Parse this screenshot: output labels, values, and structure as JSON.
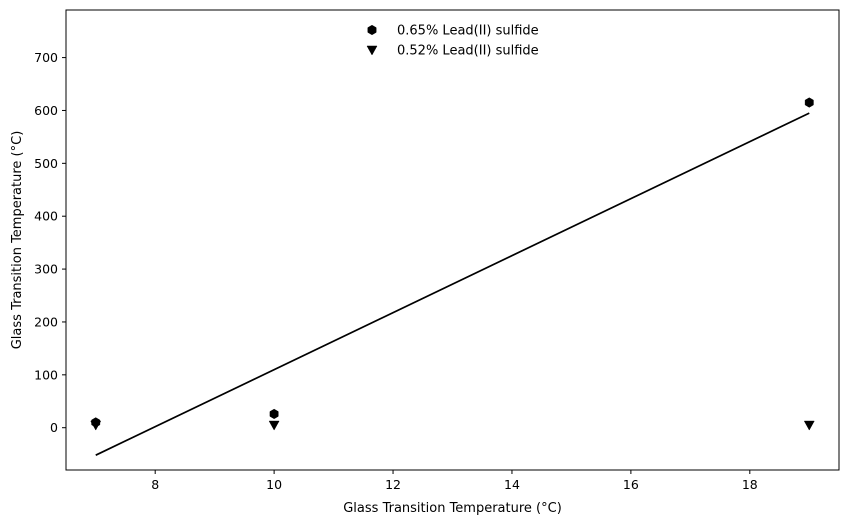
{
  "chart_data": {
    "type": "scatter",
    "xlabel": "Glass Transition Temperature (°C)",
    "ylabel": "Glass Transition Temperature (°C)",
    "xlim": [
      6.5,
      19.5
    ],
    "ylim": [
      -80,
      790
    ],
    "xticks": [
      8,
      10,
      12,
      14,
      16,
      18
    ],
    "yticks": [
      0,
      100,
      200,
      300,
      400,
      500,
      600,
      700
    ],
    "grid": false,
    "legend_position": "upper center",
    "series": [
      {
        "name": "0.65% Lead(II) sulfide",
        "marker": "hexagon",
        "color": "#000000",
        "points": [
          {
            "x": 7,
            "y": 10
          },
          {
            "x": 10,
            "y": 26
          },
          {
            "x": 19,
            "y": 615
          }
        ]
      },
      {
        "name": "0.52% Lead(II) sulfide",
        "marker": "triangle-down",
        "color": "#000000",
        "points": [
          {
            "x": 7,
            "y": 5
          },
          {
            "x": 10,
            "y": 5
          },
          {
            "x": 19,
            "y": 5
          }
        ]
      }
    ],
    "trendline": {
      "color": "#000000",
      "points": [
        {
          "x": 7,
          "y": -52
        },
        {
          "x": 19,
          "y": 595
        }
      ]
    }
  }
}
